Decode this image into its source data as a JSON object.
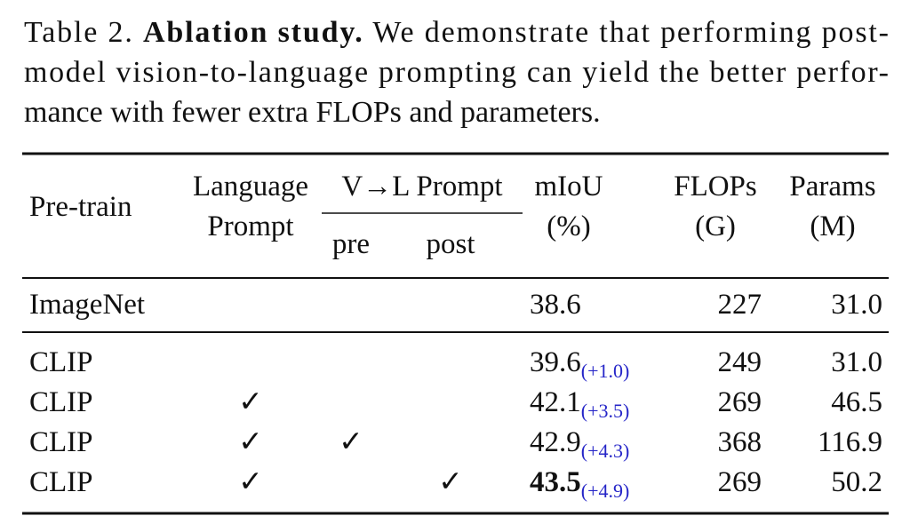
{
  "caption": {
    "label": "Table 2.",
    "title": "Ablation study.",
    "lines": [
      "We demonstrate that performing post-",
      "model vision-to-language prompting can yield the better perfor-",
      "mance with fewer extra FLOPs and parameters."
    ]
  },
  "table": {
    "header": {
      "pretrain": "Pre-train",
      "language_prompt": [
        "Language",
        "Prompt"
      ],
      "vl_prompt": "V→L Prompt",
      "pre": "pre",
      "post": "post",
      "miou": [
        "mIoU",
        "(%)"
      ],
      "flops": [
        "FLOPs",
        "(G)"
      ],
      "params": [
        "Params",
        "(M)"
      ]
    },
    "baseline": {
      "pretrain": "ImageNet",
      "miou": "38.6",
      "flops": "227",
      "params": "31.0"
    },
    "rows": [
      {
        "pretrain": "CLIP",
        "miou": "39.6",
        "delta": "(+1.0)",
        "flops": "249",
        "params": "31.0"
      },
      {
        "pretrain": "CLIP",
        "language_prompt": "✓",
        "miou": "42.1",
        "delta": "(+3.5)",
        "flops": "269",
        "params": "46.5"
      },
      {
        "pretrain": "CLIP",
        "language_prompt": "✓",
        "pre": "✓",
        "miou": "42.9",
        "delta": "(+4.3)",
        "flops": "368",
        "params": "116.9"
      },
      {
        "pretrain": "CLIP",
        "language_prompt": "✓",
        "post": "✓",
        "miou": "43.5",
        "delta": "(+4.9)",
        "flops": "269",
        "params": "50.2",
        "bold": "miou"
      }
    ]
  }
}
